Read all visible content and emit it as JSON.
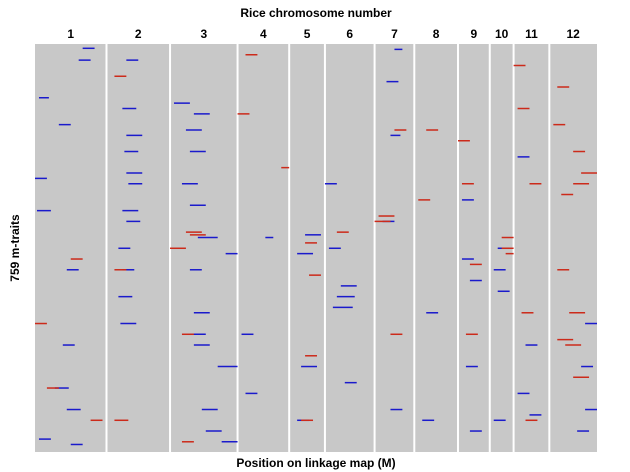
{
  "chart_data": {
    "type": "qtl-map",
    "title": "Rice chromosome number",
    "xlabel": "Position on linkage map (M)",
    "ylabel": "759 m-traits",
    "ylim": [
      0,
      759
    ],
    "categories": [
      "1",
      "2",
      "3",
      "4",
      "5",
      "6",
      "7",
      "8",
      "9",
      "10",
      "11",
      "12"
    ],
    "lengths": [
      1.8,
      1.6,
      1.7,
      1.3,
      0.9,
      1.25,
      1.0,
      1.1,
      0.8,
      0.6,
      0.9,
      1.2
    ],
    "background": "#c8c8c8",
    "series": [
      {
        "color": "#1a1acc",
        "qtls": [
          [
            0,
            8,
            1.2,
            1.5
          ],
          [
            0,
            30,
            1.1,
            1.4
          ],
          [
            0,
            100,
            0.1,
            0.35
          ],
          [
            0,
            150,
            0.6,
            0.9
          ],
          [
            0,
            250,
            0.0,
            0.3
          ],
          [
            0,
            310,
            0.05,
            0.4
          ],
          [
            0,
            420,
            0.8,
            1.1
          ],
          [
            0,
            560,
            0.7,
            1.0
          ],
          [
            0,
            640,
            0.5,
            0.85
          ],
          [
            0,
            680,
            0.8,
            1.15
          ],
          [
            0,
            735,
            0.1,
            0.4
          ],
          [
            0,
            745,
            0.9,
            1.2
          ],
          [
            1,
            30,
            0.5,
            0.8
          ],
          [
            1,
            120,
            0.4,
            0.75
          ],
          [
            1,
            170,
            0.5,
            0.9
          ],
          [
            1,
            200,
            0.45,
            0.8
          ],
          [
            1,
            240,
            0.5,
            0.9
          ],
          [
            1,
            260,
            0.55,
            0.9
          ],
          [
            1,
            310,
            0.4,
            0.8
          ],
          [
            1,
            330,
            0.5,
            0.85
          ],
          [
            1,
            380,
            0.3,
            0.6
          ],
          [
            1,
            420,
            0.4,
            0.7
          ],
          [
            1,
            470,
            0.3,
            0.65
          ],
          [
            1,
            520,
            0.35,
            0.75
          ],
          [
            2,
            110,
            0.1,
            0.5
          ],
          [
            2,
            130,
            0.6,
            1.0
          ],
          [
            2,
            160,
            0.4,
            0.8
          ],
          [
            2,
            200,
            0.5,
            0.9
          ],
          [
            2,
            260,
            0.3,
            0.7
          ],
          [
            2,
            300,
            0.5,
            0.9
          ],
          [
            2,
            360,
            0.7,
            1.2
          ],
          [
            2,
            390,
            1.4,
            1.7
          ],
          [
            2,
            420,
            0.5,
            0.8
          ],
          [
            2,
            500,
            0.6,
            1.0
          ],
          [
            2,
            540,
            0.5,
            0.9
          ],
          [
            2,
            560,
            0.6,
            1.0
          ],
          [
            2,
            600,
            1.2,
            1.7
          ],
          [
            2,
            680,
            0.8,
            1.2
          ],
          [
            2,
            720,
            0.9,
            1.3
          ],
          [
            2,
            740,
            1.3,
            1.7
          ],
          [
            3,
            360,
            0.7,
            0.9
          ],
          [
            3,
            540,
            0.1,
            0.4
          ],
          [
            3,
            650,
            0.2,
            0.5
          ],
          [
            4,
            355,
            0.4,
            0.8
          ],
          [
            4,
            390,
            0.2,
            0.6
          ],
          [
            4,
            600,
            0.3,
            0.7
          ],
          [
            4,
            700,
            0.2,
            0.5
          ],
          [
            5,
            260,
            0.0,
            0.3
          ],
          [
            5,
            380,
            0.1,
            0.4
          ],
          [
            5,
            450,
            0.4,
            0.8
          ],
          [
            5,
            470,
            0.3,
            0.75
          ],
          [
            5,
            490,
            0.2,
            0.7
          ],
          [
            5,
            630,
            0.5,
            0.8
          ],
          [
            6,
            10,
            0.5,
            0.7
          ],
          [
            6,
            70,
            0.3,
            0.6
          ],
          [
            6,
            170,
            0.4,
            0.65
          ],
          [
            6,
            330,
            0.2,
            0.5
          ],
          [
            6,
            680,
            0.4,
            0.7
          ],
          [
            7,
            500,
            0.3,
            0.6
          ],
          [
            7,
            700,
            0.2,
            0.5
          ],
          [
            8,
            290,
            0.1,
            0.4
          ],
          [
            8,
            400,
            0.1,
            0.4
          ],
          [
            8,
            440,
            0.3,
            0.6
          ],
          [
            8,
            600,
            0.2,
            0.5
          ],
          [
            8,
            720,
            0.3,
            0.6
          ],
          [
            9,
            380,
            0.2,
            0.5
          ],
          [
            9,
            420,
            0.1,
            0.4
          ],
          [
            9,
            460,
            0.2,
            0.5
          ],
          [
            9,
            700,
            0.1,
            0.4
          ],
          [
            10,
            210,
            0.1,
            0.4
          ],
          [
            10,
            560,
            0.3,
            0.6
          ],
          [
            10,
            650,
            0.1,
            0.4
          ],
          [
            10,
            690,
            0.4,
            0.7
          ],
          [
            11,
            520,
            0.9,
            1.2
          ],
          [
            11,
            600,
            0.8,
            1.1
          ],
          [
            11,
            680,
            0.9,
            1.2
          ],
          [
            11,
            720,
            0.7,
            1.0
          ]
        ]
      },
      {
        "color": "#cc2a1a",
        "qtls": [
          [
            0,
            400,
            0.9,
            1.2
          ],
          [
            0,
            520,
            0.0,
            0.3
          ],
          [
            0,
            640,
            0.3,
            0.6
          ],
          [
            0,
            700,
            1.4,
            1.7
          ],
          [
            1,
            60,
            0.2,
            0.5
          ],
          [
            1,
            420,
            0.2,
            0.5
          ],
          [
            1,
            700,
            0.2,
            0.55
          ],
          [
            2,
            350,
            0.4,
            0.8
          ],
          [
            2,
            355,
            0.5,
            0.9
          ],
          [
            2,
            380,
            0.0,
            0.4
          ],
          [
            2,
            540,
            0.3,
            0.6
          ],
          [
            2,
            740,
            0.3,
            0.6
          ],
          [
            3,
            20,
            0.2,
            0.5
          ],
          [
            3,
            130,
            0.0,
            0.3
          ],
          [
            3,
            230,
            1.1,
            1.3
          ],
          [
            4,
            370,
            0.4,
            0.7
          ],
          [
            4,
            430,
            0.5,
            0.8
          ],
          [
            4,
            580,
            0.4,
            0.7
          ],
          [
            4,
            700,
            0.3,
            0.6
          ],
          [
            5,
            350,
            0.3,
            0.6
          ],
          [
            6,
            320,
            0.1,
            0.5
          ],
          [
            6,
            330,
            0.0,
            0.4
          ],
          [
            6,
            160,
            0.5,
            0.8
          ],
          [
            6,
            540,
            0.4,
            0.7
          ],
          [
            7,
            160,
            0.3,
            0.6
          ],
          [
            7,
            290,
            0.1,
            0.4
          ],
          [
            8,
            180,
            0.0,
            0.3
          ],
          [
            8,
            260,
            0.1,
            0.4
          ],
          [
            8,
            410,
            0.3,
            0.6
          ],
          [
            8,
            540,
            0.2,
            0.5
          ],
          [
            9,
            360,
            0.3,
            0.6
          ],
          [
            9,
            380,
            0.3,
            0.6
          ],
          [
            9,
            390,
            0.4,
            0.6
          ],
          [
            10,
            40,
            0.0,
            0.3
          ],
          [
            10,
            120,
            0.1,
            0.4
          ],
          [
            10,
            260,
            0.4,
            0.7
          ],
          [
            10,
            500,
            0.2,
            0.5
          ],
          [
            10,
            700,
            0.3,
            0.6
          ],
          [
            11,
            80,
            0.2,
            0.5
          ],
          [
            11,
            150,
            0.1,
            0.4
          ],
          [
            11,
            200,
            0.6,
            0.9
          ],
          [
            11,
            240,
            0.8,
            1.2
          ],
          [
            11,
            260,
            0.6,
            1.0
          ],
          [
            11,
            280,
            0.3,
            0.6
          ],
          [
            11,
            420,
            0.2,
            0.5
          ],
          [
            11,
            500,
            0.5,
            0.9
          ],
          [
            11,
            550,
            0.2,
            0.6
          ],
          [
            11,
            560,
            0.4,
            0.8
          ],
          [
            11,
            620,
            0.6,
            1.0
          ]
        ]
      }
    ]
  }
}
